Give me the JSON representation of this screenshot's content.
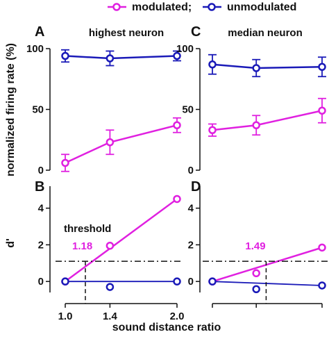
{
  "legend": {
    "modulated_label": "modulated;",
    "unmodulated_label": "unmodulated"
  },
  "colors": {
    "modulated": "#e020e0",
    "unmodulated": "#1a1ab8",
    "axis": "#111111"
  },
  "shared": {
    "ylabel_top": "normalized firing rate (%)",
    "ylabel_bottom": "d'",
    "xlabel": "sound distance ratio",
    "x_ticks": [
      "1.0",
      "1.4",
      "2.0"
    ]
  },
  "chart_data": [
    {
      "panel": "A",
      "type": "line",
      "title": "highest neuron",
      "x": [
        1.0,
        1.4,
        2.0
      ],
      "ylim": [
        0,
        100
      ],
      "y_ticks": [
        0,
        50,
        100
      ],
      "series": [
        {
          "name": "modulated;",
          "values": [
            6,
            23,
            37
          ],
          "errors": [
            7,
            10,
            6
          ]
        },
        {
          "name": "unmodulated",
          "values": [
            94,
            92,
            94
          ],
          "errors": [
            5,
            6,
            4
          ]
        }
      ]
    },
    {
      "panel": "C",
      "type": "line",
      "title": "median neuron",
      "x": [
        1.0,
        1.4,
        2.0
      ],
      "ylim": [
        0,
        100
      ],
      "y_ticks": [
        0,
        50,
        100
      ],
      "series": [
        {
          "name": "modulated;",
          "values": [
            33,
            37,
            49
          ],
          "errors": [
            5,
            8,
            10
          ]
        },
        {
          "name": "unmodulated",
          "values": [
            87,
            84,
            85
          ],
          "errors": [
            8,
            7,
            8
          ]
        }
      ]
    },
    {
      "panel": "B",
      "type": "scatter",
      "x": [
        1.0,
        1.4,
        2.0
      ],
      "ylim": [
        -0.6,
        5.2
      ],
      "y_ticks": [
        0,
        2,
        4
      ],
      "threshold_label": "threshold",
      "threshold_y": 1.1,
      "threshold_x": 1.18,
      "threshold_value_label": "1.18",
      "series": [
        {
          "name": "modulated;",
          "values": [
            0,
            1.95,
            4.5
          ],
          "fit": [
            0,
            4.5
          ]
        },
        {
          "name": "unmodulated",
          "values": [
            0,
            -0.3,
            0
          ],
          "fit": [
            0,
            0
          ]
        }
      ]
    },
    {
      "panel": "D",
      "type": "scatter",
      "x": [
        1.0,
        1.4,
        2.0
      ],
      "ylim": [
        -0.6,
        5.2
      ],
      "y_ticks": [
        0,
        2,
        4
      ],
      "threshold_y": 1.1,
      "threshold_x": 1.49,
      "threshold_value_label": "1.49",
      "series": [
        {
          "name": "modulated;",
          "values": [
            0,
            0.45,
            1.85
          ],
          "fit": [
            0,
            1.85
          ]
        },
        {
          "name": "unmodulated",
          "values": [
            0,
            -0.42,
            -0.22
          ],
          "fit": [
            0,
            -0.22
          ]
        }
      ]
    }
  ]
}
